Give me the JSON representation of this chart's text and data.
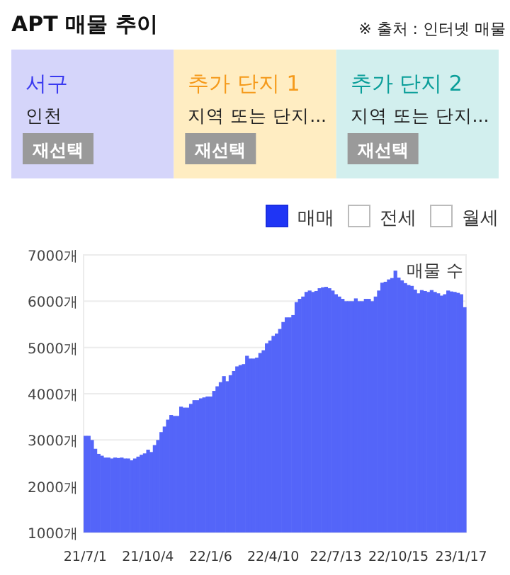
{
  "chart_data": [
    {
      "type": "other",
      "title": "APT 매물 추이",
      "annotations": [
        "※ 출처 : 인터넷 매물",
        "서구",
        "인천",
        "재선택",
        "추가 단지 1",
        "지역 또는 단지...",
        "재선택",
        "추가 단지 2",
        "지역 또는 단지...",
        "재선택"
      ],
      "colors": [
        "#d5d5fa",
        "#ffedc2",
        "#d2efee"
      ]
    },
    {
      "type": "bar",
      "categories": [
        "21/7/1",
        null,
        null,
        null,
        null,
        null,
        null,
        null,
        null,
        null,
        null,
        null,
        null,
        null,
        null,
        null,
        null,
        null,
        null,
        "21/10/4",
        null,
        null,
        null,
        null,
        null,
        null,
        null,
        null,
        null,
        null,
        null,
        null,
        null,
        null,
        null,
        null,
        null,
        null,
        "22/1/6",
        null,
        null,
        null,
        null,
        null,
        null,
        null,
        null,
        null,
        null,
        null,
        null,
        null,
        null,
        null,
        null,
        null,
        null,
        "22/4/10",
        null,
        null,
        null,
        null,
        null,
        null,
        null,
        null,
        null,
        null,
        null,
        null,
        null,
        null,
        null,
        null,
        null,
        null,
        "22/7/13",
        null,
        null,
        null,
        null,
        null,
        null,
        null,
        null,
        null,
        null,
        null,
        null,
        null,
        null,
        null,
        null,
        null,
        null,
        "22/10/15",
        null,
        null,
        null,
        null,
        null,
        null,
        null,
        null,
        null,
        null,
        null,
        null,
        null,
        null,
        null,
        null,
        null,
        null,
        "23/1/17",
        null
      ],
      "series": [
        {
          "name": "매물 수",
          "color": "#5465f9",
          "values": [
            3090,
            3090,
            3000,
            2810,
            2700,
            2660,
            2620,
            2620,
            2600,
            2620,
            2610,
            2620,
            2600,
            2600,
            2560,
            2600,
            2640,
            2680,
            2710,
            2790,
            2740,
            2890,
            3000,
            3170,
            3290,
            3440,
            3540,
            3520,
            3520,
            3720,
            3700,
            3700,
            3780,
            3860,
            3860,
            3900,
            3920,
            3940,
            3940,
            4060,
            4160,
            4250,
            4380,
            4270,
            4400,
            4490,
            4590,
            4620,
            4640,
            4820,
            4760,
            4760,
            4780,
            4880,
            4940,
            5090,
            5150,
            5250,
            5300,
            5400,
            5550,
            5650,
            5650,
            5700,
            5980,
            6050,
            6100,
            6200,
            6230,
            6200,
            6220,
            6280,
            6300,
            6310,
            6280,
            6230,
            6150,
            6100,
            6050,
            6000,
            6000,
            6000,
            6060,
            6000,
            6000,
            6050,
            6050,
            6000,
            6100,
            6230,
            6400,
            6420,
            6470,
            6500,
            6660,
            6510,
            6450,
            6390,
            6350,
            6330,
            6250,
            6170,
            6240,
            6220,
            6200,
            6240,
            6200,
            6170,
            6120,
            6150,
            6230,
            6210,
            6200,
            6180,
            6150,
            5870
          ]
        }
      ],
      "annotations": [
        "매매",
        "전세",
        "월세"
      ],
      "ylim": [
        1000,
        7000
      ],
      "yticks": [
        {
          "value": 1000,
          "label": "1000개"
        },
        {
          "value": 2000,
          "label": "2000개"
        },
        {
          "value": 3000,
          "label": "3000개"
        },
        {
          "value": 4000,
          "label": "4000개"
        },
        {
          "value": 5000,
          "label": "5000개"
        },
        {
          "value": 6000,
          "label": "6000개"
        },
        {
          "value": 7000,
          "label": "7000개"
        }
      ],
      "grid": "y",
      "legend": "top right"
    }
  ]
}
